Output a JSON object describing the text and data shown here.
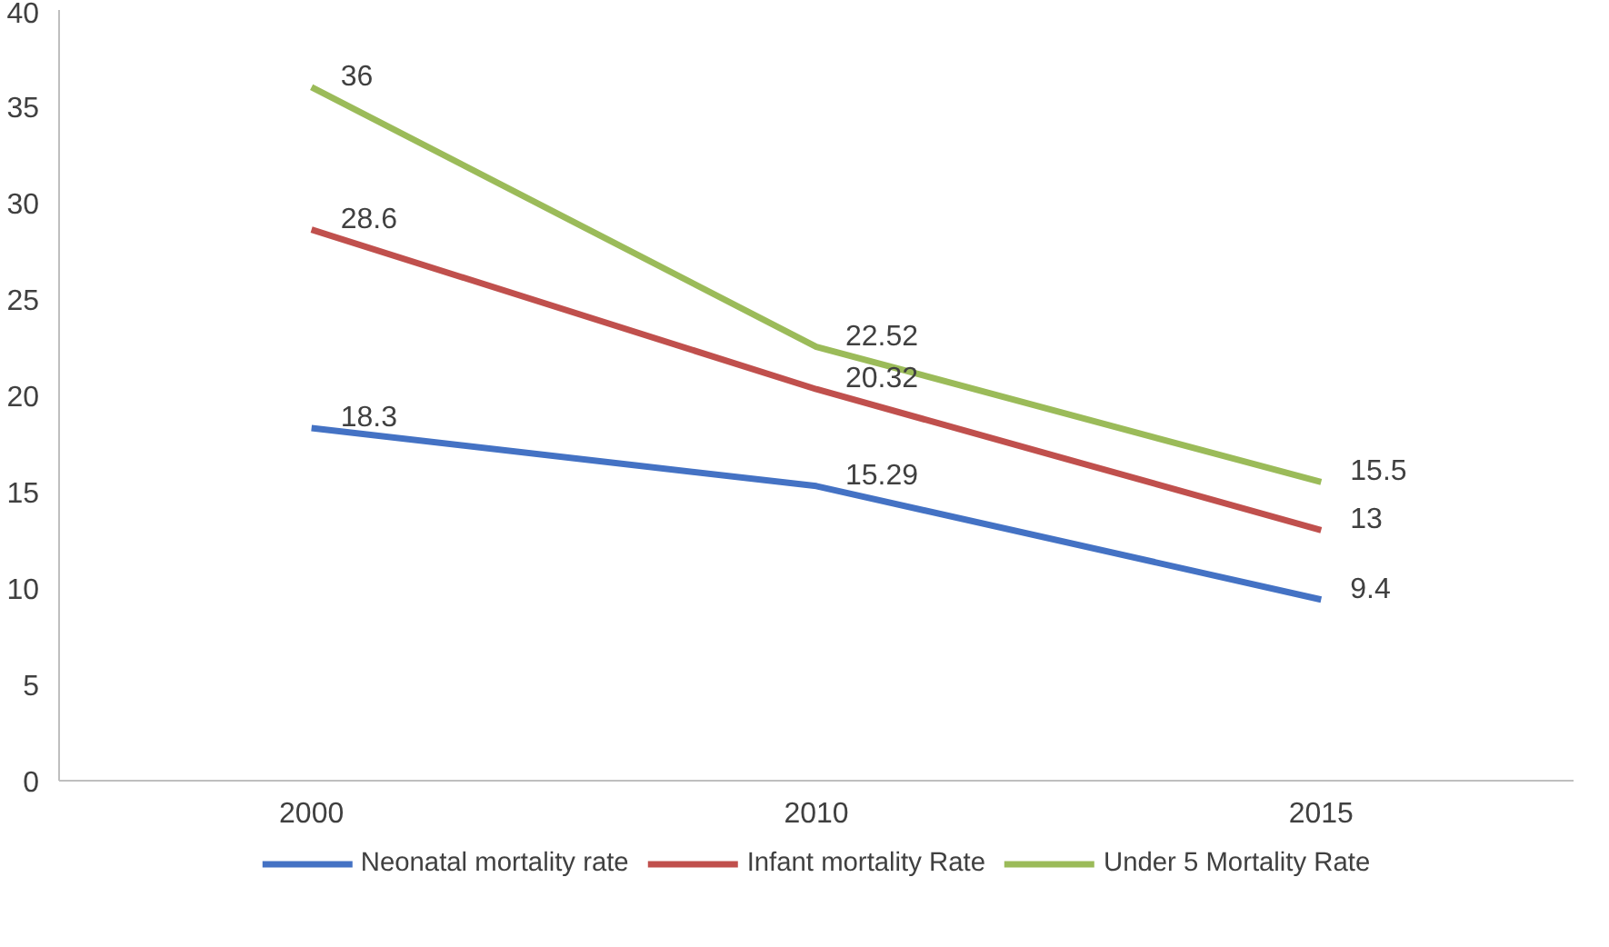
{
  "chart_data": {
    "type": "line",
    "categories": [
      "2000",
      "2010",
      "2015"
    ],
    "series": [
      {
        "name": "Neonatal mortality rate",
        "color": "#4472c4",
        "values": [
          18.3,
          15.29,
          9.4
        ]
      },
      {
        "name": "Infant mortality Rate",
        "color": "#c0504d",
        "values": [
          28.6,
          20.32,
          13
        ]
      },
      {
        "name": "Under 5 Mortality Rate",
        "color": "#9bbb59",
        "values": [
          36,
          22.52,
          15.5
        ]
      }
    ],
    "ylim": [
      0,
      40
    ],
    "yticks": [
      0,
      5,
      10,
      15,
      20,
      25,
      30,
      35,
      40
    ],
    "grid": false,
    "legend": "bottom",
    "data_labels": true,
    "marker": "none",
    "line_style": "solid"
  }
}
